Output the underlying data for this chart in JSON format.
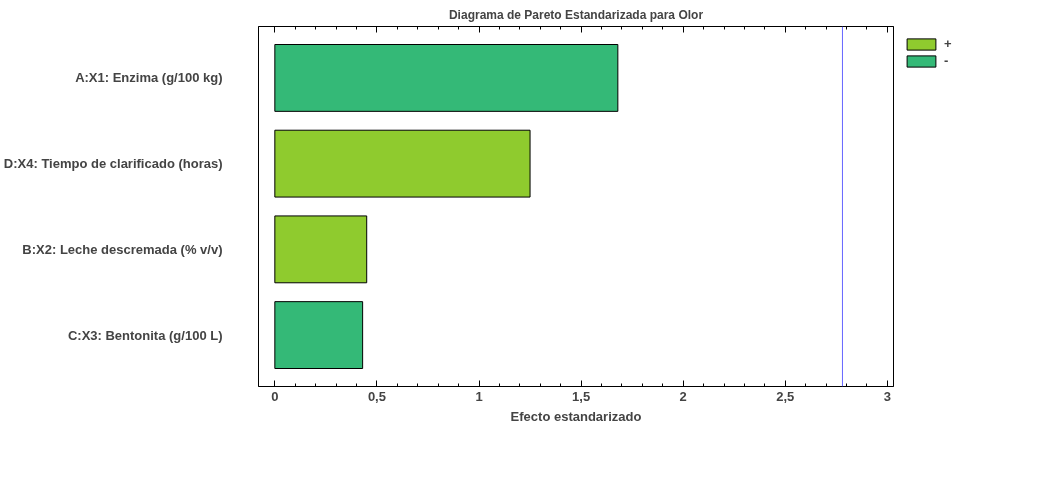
{
  "chart_data": {
    "type": "bar",
    "orientation": "horizontal",
    "title": "Diagrama de Pareto Estandarizada para Olor",
    "xlabel": "Efecto estandarizado",
    "categories": [
      "A:X1: Enzima (g/100 kg)",
      "D:X4: Tiempo de clarificado (horas)",
      "B:X2: Leche descremada (% v/v)",
      "C:X3: Bentonita (g/100 L)"
    ],
    "series": [
      {
        "name": "+",
        "color": "#8fcb2e",
        "values": [
          null,
          1.25,
          0.45,
          null
        ]
      },
      {
        "name": "-",
        "color": "#34b977",
        "values": [
          1.68,
          null,
          null,
          0.43
        ]
      }
    ],
    "xlim": [
      -0.08,
      3.03
    ],
    "xticks": [
      0,
      {
        "value": 0.5,
        "label": "0,5"
      },
      1,
      {
        "value": 1.5,
        "label": "1,5"
      },
      2,
      {
        "value": 2.5,
        "label": "2,5"
      },
      3
    ],
    "ref_lines": [
      {
        "axis": "x",
        "value": 2.78,
        "color": "#6666ff"
      }
    ],
    "legend": "top right",
    "grid": false
  }
}
